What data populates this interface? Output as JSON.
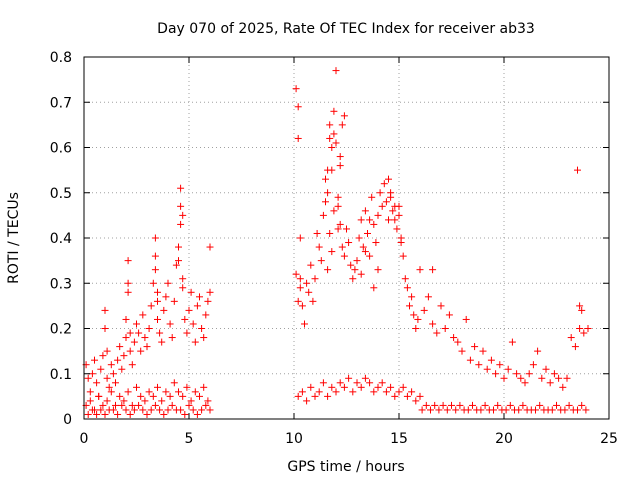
{
  "chart_data": {
    "type": "scatter",
    "title": "Day 070 of 2025, Rate Of TEC Index for receiver ab33",
    "xlabel": "GPS time / hours",
    "ylabel": "ROTI / TECUs",
    "xlim": [
      0,
      25
    ],
    "ylim": [
      0,
      0.8
    ],
    "x_ticks": [
      "0",
      "5",
      "10",
      "15",
      "20",
      "25"
    ],
    "y_ticks": [
      "0",
      "0.1",
      "0.2",
      "0.3",
      "0.4",
      "0.5",
      "0.6",
      "0.7",
      "0.8"
    ],
    "grid": true,
    "marker": "plus",
    "color": "#ff0000",
    "series": [
      {
        "values_note": "",
        "x": [
          0.1,
          0.2,
          0.3,
          0.4,
          0.5,
          0.6,
          0.7,
          0.8,
          0.9,
          1.0,
          1.0,
          1.1,
          1.1,
          1.2,
          1.3,
          1.4,
          1.5,
          1.6,
          1.7,
          1.8,
          1.9,
          2.0,
          2.0,
          2.1,
          2.1,
          2.2,
          2.2,
          2.3,
          2.4,
          2.5,
          2.6,
          2.7,
          2.8,
          2.9,
          3.0,
          3.1,
          3.2,
          3.3,
          3.4,
          3.4,
          3.5,
          3.5,
          3.6,
          3.7,
          3.8,
          3.9,
          4.0,
          4.1,
          4.2,
          4.3,
          4.4,
          4.5,
          4.6,
          4.6,
          4.7,
          4.7,
          4.8,
          4.9,
          5.0,
          5.1,
          5.2,
          5.3,
          5.4,
          5.5,
          5.6,
          5.7,
          5.8,
          5.9,
          6.0,
          6.0,
          0.1,
          0.3,
          0.5,
          0.7,
          0.9,
          1.1,
          1.3,
          1.5,
          1.7,
          1.9,
          2.1,
          2.3,
          2.5,
          2.7,
          2.9,
          3.1,
          3.3,
          3.5,
          3.7,
          3.9,
          4.1,
          4.3,
          4.5,
          4.7,
          4.9,
          5.1,
          5.3,
          5.5,
          5.7,
          5.9,
          0.2,
          0.4,
          0.6,
          0.8,
          1.0,
          1.2,
          1.4,
          1.6,
          1.8,
          2.0,
          2.2,
          2.4,
          2.6,
          2.8,
          3.0,
          3.2,
          3.4,
          3.6,
          3.8,
          4.0,
          4.2,
          4.4,
          4.6,
          4.8,
          5.0,
          5.2,
          5.4,
          5.6,
          5.8,
          6.0,
          10.1,
          10.1,
          10.2,
          10.2,
          10.3,
          10.3,
          10.4,
          10.5,
          10.6,
          10.7,
          10.8,
          10.9,
          11.0,
          11.1,
          11.2,
          11.3,
          11.4,
          11.5,
          11.5,
          11.6,
          11.6,
          11.7,
          11.7,
          11.8,
          11.8,
          11.9,
          11.9,
          12.0,
          12.0,
          12.1,
          12.1,
          12.2,
          12.2,
          12.3,
          12.4,
          12.5,
          12.6,
          12.7,
          12.8,
          12.9,
          13.0,
          13.1,
          13.2,
          13.3,
          13.4,
          13.5,
          13.6,
          13.7,
          13.8,
          13.9,
          14.0,
          14.1,
          14.2,
          14.3,
          14.4,
          14.5,
          14.6,
          14.7,
          14.8,
          14.9,
          15.0,
          15.1,
          15.2,
          15.3,
          15.4,
          15.5,
          15.6,
          15.7,
          15.8,
          15.9,
          10.2,
          10.4,
          10.6,
          10.8,
          11.0,
          11.2,
          11.4,
          11.6,
          11.8,
          12.0,
          12.2,
          12.4,
          12.6,
          12.8,
          13.0,
          13.2,
          13.4,
          13.6,
          13.8,
          14.0,
          14.2,
          14.4,
          14.6,
          14.8,
          15.0,
          15.2,
          15.4,
          15.6,
          15.8,
          16.0,
          16.0,
          16.2,
          16.4,
          16.6,
          16.8,
          17.0,
          17.2,
          17.4,
          17.6,
          17.8,
          18.0,
          18.2,
          18.4,
          18.6,
          18.8,
          19.0,
          19.2,
          19.4,
          19.6,
          19.8,
          20.0,
          20.2,
          20.4,
          20.6,
          20.8,
          21.0,
          21.2,
          21.4,
          21.6,
          21.8,
          22.0,
          22.2,
          22.4,
          22.6,
          22.8,
          23.0,
          23.2,
          23.4,
          23.6,
          23.8,
          24.0,
          16.1,
          16.3,
          16.5,
          16.7,
          16.9,
          17.1,
          17.3,
          17.5,
          17.7,
          17.9,
          18.1,
          18.3,
          18.5,
          18.7,
          18.9,
          19.1,
          19.3,
          19.5,
          19.7,
          19.9,
          20.1,
          20.3,
          20.5,
          20.7,
          20.9,
          21.1,
          21.3,
          21.5,
          21.7,
          21.9,
          22.1,
          22.3,
          22.5,
          22.7,
          22.9,
          23.1,
          23.3,
          23.5,
          23.7,
          23.9,
          10.2,
          10.3,
          11.7,
          11.9,
          12.2,
          12.1,
          12.3,
          12.4,
          11.8,
          11.6,
          14.5,
          14.6,
          14.8,
          15.0,
          15.1,
          13.2,
          13.4,
          13.6,
          13.8,
          14.0,
          4.6,
          4.7,
          4.5,
          3.4,
          3.5,
          2.1,
          23.5,
          23.6,
          23.7,
          16.6
        ],
        "y": [
          0.12,
          0.09,
          0.06,
          0.1,
          0.13,
          0.08,
          0.05,
          0.11,
          0.14,
          0.2,
          0.24,
          0.15,
          0.09,
          0.07,
          0.12,
          0.1,
          0.08,
          0.13,
          0.16,
          0.11,
          0.14,
          0.18,
          0.22,
          0.28,
          0.35,
          0.19,
          0.15,
          0.12,
          0.17,
          0.21,
          0.19,
          0.15,
          0.23,
          0.18,
          0.16,
          0.2,
          0.25,
          0.3,
          0.4,
          0.36,
          0.26,
          0.22,
          0.19,
          0.17,
          0.24,
          0.27,
          0.3,
          0.21,
          0.18,
          0.26,
          0.34,
          0.38,
          0.47,
          0.51,
          0.31,
          0.29,
          0.22,
          0.19,
          0.24,
          0.28,
          0.21,
          0.17,
          0.25,
          0.27,
          0.2,
          0.18,
          0.23,
          0.26,
          0.38,
          0.28,
          0.03,
          0.04,
          0.02,
          0.05,
          0.03,
          0.04,
          0.06,
          0.03,
          0.05,
          0.04,
          0.06,
          0.03,
          0.07,
          0.05,
          0.04,
          0.06,
          0.05,
          0.07,
          0.04,
          0.06,
          0.05,
          0.08,
          0.06,
          0.05,
          0.07,
          0.04,
          0.06,
          0.05,
          0.07,
          0.04,
          0.01,
          0.02,
          0.01,
          0.02,
          0.01,
          0.02,
          0.02,
          0.01,
          0.03,
          0.02,
          0.01,
          0.02,
          0.03,
          0.02,
          0.01,
          0.02,
          0.03,
          0.02,
          0.01,
          0.02,
          0.03,
          0.02,
          0.02,
          0.01,
          0.03,
          0.02,
          0.01,
          0.02,
          0.03,
          0.02,
          0.32,
          0.73,
          0.62,
          0.69,
          0.4,
          0.29,
          0.25,
          0.21,
          0.3,
          0.28,
          0.34,
          0.26,
          0.31,
          0.41,
          0.38,
          0.35,
          0.45,
          0.53,
          0.48,
          0.55,
          0.5,
          0.65,
          0.62,
          0.6,
          0.55,
          0.68,
          0.63,
          0.61,
          0.77,
          0.47,
          0.49,
          0.56,
          0.43,
          0.38,
          0.36,
          0.42,
          0.39,
          0.34,
          0.31,
          0.33,
          0.35,
          0.4,
          0.44,
          0.38,
          0.46,
          0.41,
          0.36,
          0.49,
          0.43,
          0.39,
          0.45,
          0.5,
          0.47,
          0.52,
          0.48,
          0.53,
          0.5,
          0.46,
          0.44,
          0.42,
          0.47,
          0.39,
          0.36,
          0.31,
          0.29,
          0.25,
          0.27,
          0.23,
          0.2,
          0.22,
          0.05,
          0.06,
          0.04,
          0.07,
          0.05,
          0.06,
          0.08,
          0.05,
          0.07,
          0.06,
          0.08,
          0.07,
          0.09,
          0.06,
          0.08,
          0.07,
          0.09,
          0.08,
          0.06,
          0.07,
          0.08,
          0.06,
          0.07,
          0.05,
          0.06,
          0.07,
          0.05,
          0.06,
          0.04,
          0.05,
          0.33,
          0.24,
          0.27,
          0.21,
          0.19,
          0.25,
          0.2,
          0.23,
          0.18,
          0.17,
          0.15,
          0.22,
          0.13,
          0.16,
          0.12,
          0.15,
          0.11,
          0.13,
          0.1,
          0.12,
          0.09,
          0.11,
          0.17,
          0.1,
          0.09,
          0.08,
          0.1,
          0.12,
          0.15,
          0.09,
          0.11,
          0.08,
          0.1,
          0.09,
          0.07,
          0.09,
          0.18,
          0.16,
          0.2,
          0.19,
          0.2,
          0.02,
          0.03,
          0.02,
          0.03,
          0.02,
          0.03,
          0.02,
          0.03,
          0.02,
          0.03,
          0.02,
          0.02,
          0.03,
          0.02,
          0.02,
          0.03,
          0.02,
          0.02,
          0.03,
          0.02,
          0.02,
          0.03,
          0.02,
          0.02,
          0.03,
          0.02,
          0.02,
          0.02,
          0.03,
          0.02,
          0.02,
          0.02,
          0.03,
          0.02,
          0.02,
          0.03,
          0.02,
          0.02,
          0.03,
          0.02,
          0.26,
          0.31,
          0.41,
          0.46,
          0.58,
          0.42,
          0.65,
          0.67,
          0.37,
          0.33,
          0.44,
          0.49,
          0.47,
          0.45,
          0.4,
          0.32,
          0.37,
          0.44,
          0.29,
          0.33,
          0.43,
          0.45,
          0.35,
          0.33,
          0.28,
          0.3,
          0.55,
          0.25,
          0.24,
          0.33
        ]
      }
    ]
  }
}
